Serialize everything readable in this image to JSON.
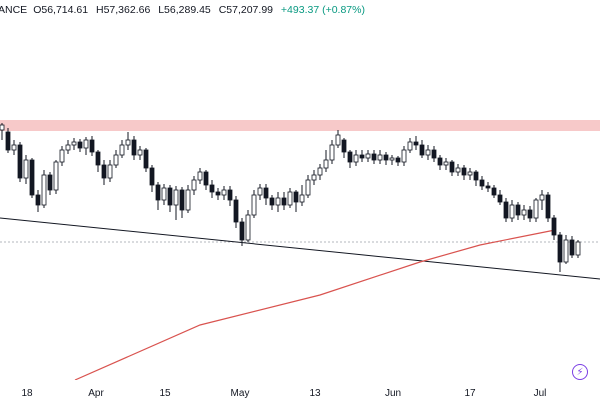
{
  "header": {
    "symbol_fragment": "ANCE",
    "open": "O56,714.61",
    "high": "H57,362.66",
    "low": "L56,289.45",
    "close": "C57,207.99",
    "change": "+493.37 (+0.87%)"
  },
  "xaxis": {
    "labels": [
      "18",
      "Apr",
      "15",
      "May",
      "13",
      "Jun",
      "17",
      "Jul"
    ]
  },
  "colors": {
    "up": "#131722",
    "down": "#131722",
    "resistance_zone": "#f7c9c9",
    "ma_line": "#d9534f",
    "trendline": "#131722",
    "dotted_line": "#9aa0a6",
    "badge": "#7b3fe4"
  },
  "icons": {
    "badge": "lightning-bolt-icon"
  },
  "chart_data": {
    "type": "candlestick",
    "resistance_zone": [
      120,
      131
    ],
    "trendline_segment": [
      [
        0,
        218
      ],
      [
        600,
        279
      ]
    ],
    "moving_average": [
      [
        75,
        380
      ],
      [
        200,
        325
      ],
      [
        320,
        295
      ],
      [
        420,
        262
      ],
      [
        480,
        245
      ],
      [
        540,
        233
      ],
      [
        555,
        230
      ]
    ],
    "dotted_level": 242,
    "candles": [
      [
        2,
        130,
        125,
        140,
        123
      ],
      [
        8,
        132,
        150,
        153,
        128
      ],
      [
        14,
        150,
        145,
        155,
        140
      ],
      [
        20,
        145,
        178,
        182,
        142
      ],
      [
        26,
        178,
        160,
        184,
        155
      ],
      [
        32,
        160,
        195,
        198,
        158
      ],
      [
        38,
        195,
        205,
        212,
        190
      ],
      [
        44,
        205,
        175,
        208,
        170
      ],
      [
        50,
        175,
        190,
        195,
        172
      ],
      [
        56,
        190,
        162,
        194,
        160
      ],
      [
        62,
        162,
        150,
        166,
        146
      ],
      [
        68,
        150,
        145,
        154,
        140
      ],
      [
        74,
        145,
        142,
        150,
        138
      ],
      [
        80,
        142,
        148,
        152,
        139
      ],
      [
        86,
        148,
        140,
        155,
        137
      ],
      [
        92,
        140,
        152,
        156,
        136
      ],
      [
        98,
        152,
        165,
        172,
        150
      ],
      [
        104,
        165,
        178,
        185,
        160
      ],
      [
        110,
        178,
        165,
        182,
        160
      ],
      [
        116,
        165,
        155,
        168,
        150
      ],
      [
        122,
        155,
        145,
        158,
        140
      ],
      [
        128,
        145,
        140,
        150,
        132
      ],
      [
        134,
        140,
        155,
        160,
        136
      ],
      [
        140,
        155,
        150,
        160,
        146
      ],
      [
        146,
        150,
        168,
        172,
        148
      ],
      [
        152,
        168,
        185,
        192,
        165
      ],
      [
        158,
        185,
        200,
        210,
        182
      ],
      [
        164,
        200,
        188,
        205,
        184
      ],
      [
        170,
        188,
        205,
        212,
        185
      ],
      [
        176,
        205,
        190,
        220,
        186
      ],
      [
        182,
        190,
        210,
        218,
        187
      ],
      [
        188,
        210,
        190,
        213,
        185
      ],
      [
        194,
        190,
        180,
        195,
        176
      ],
      [
        200,
        180,
        172,
        184,
        168
      ],
      [
        206,
        172,
        185,
        190,
        170
      ],
      [
        212,
        185,
        192,
        198,
        180
      ],
      [
        218,
        192,
        195,
        200,
        188
      ],
      [
        224,
        195,
        190,
        200,
        186
      ],
      [
        230,
        190,
        200,
        206,
        186
      ],
      [
        236,
        200,
        222,
        228,
        196
      ],
      [
        242,
        222,
        240,
        246,
        218
      ],
      [
        248,
        240,
        215,
        242,
        210
      ],
      [
        254,
        215,
        195,
        218,
        190
      ],
      [
        260,
        195,
        188,
        200,
        184
      ],
      [
        266,
        188,
        198,
        205,
        184
      ],
      [
        272,
        198,
        205,
        210,
        195
      ],
      [
        278,
        205,
        198,
        212,
        192
      ],
      [
        284,
        198,
        205,
        210,
        192
      ],
      [
        290,
        205,
        192,
        208,
        188
      ],
      [
        296,
        192,
        202,
        212,
        190
      ],
      [
        302,
        202,
        195,
        206,
        185
      ],
      [
        308,
        195,
        180,
        198,
        175
      ],
      [
        314,
        180,
        175,
        185,
        170
      ],
      [
        320,
        175,
        168,
        180,
        164
      ],
      [
        326,
        168,
        160,
        172,
        150
      ],
      [
        332,
        160,
        145,
        164,
        140
      ],
      [
        338,
        145,
        135,
        148,
        130
      ],
      [
        344,
        140,
        152,
        158,
        138
      ],
      [
        350,
        152,
        162,
        168,
        150
      ],
      [
        356,
        162,
        155,
        166,
        150
      ],
      [
        362,
        155,
        158,
        162,
        150
      ],
      [
        368,
        158,
        154,
        162,
        150
      ],
      [
        374,
        154,
        160,
        164,
        150
      ],
      [
        380,
        160,
        155,
        164,
        150
      ],
      [
        386,
        155,
        160,
        165,
        152
      ],
      [
        392,
        160,
        158,
        165,
        155
      ],
      [
        398,
        158,
        162,
        166,
        156
      ],
      [
        404,
        162,
        150,
        166,
        146
      ],
      [
        410,
        150,
        142,
        153,
        138
      ],
      [
        416,
        142,
        145,
        150,
        136
      ],
      [
        422,
        145,
        155,
        158,
        140
      ],
      [
        428,
        155,
        150,
        160,
        145
      ],
      [
        434,
        150,
        158,
        162,
        146
      ],
      [
        440,
        158,
        165,
        170,
        155
      ],
      [
        446,
        165,
        162,
        170,
        158
      ],
      [
        452,
        162,
        172,
        176,
        160
      ],
      [
        458,
        172,
        168,
        176,
        164
      ],
      [
        464,
        168,
        175,
        180,
        165
      ],
      [
        470,
        175,
        172,
        180,
        168
      ],
      [
        476,
        172,
        180,
        186,
        170
      ],
      [
        482,
        180,
        186,
        190,
        176
      ],
      [
        488,
        186,
        188,
        192,
        182
      ],
      [
        494,
        188,
        195,
        198,
        185
      ],
      [
        500,
        195,
        202,
        205,
        190
      ],
      [
        506,
        202,
        218,
        222,
        198
      ],
      [
        512,
        218,
        205,
        222,
        200
      ],
      [
        518,
        205,
        215,
        220,
        202
      ],
      [
        524,
        215,
        210,
        220,
        205
      ],
      [
        530,
        210,
        218,
        222,
        206
      ],
      [
        536,
        218,
        200,
        222,
        198
      ],
      [
        542,
        200,
        195,
        210,
        190
      ],
      [
        548,
        195,
        218,
        222,
        192
      ],
      [
        554,
        218,
        235,
        240,
        215
      ],
      [
        560,
        235,
        262,
        272,
        232
      ],
      [
        566,
        262,
        240,
        264,
        235
      ],
      [
        572,
        240,
        255,
        258,
        236
      ],
      [
        578,
        255,
        242,
        258,
        240
      ]
    ]
  }
}
